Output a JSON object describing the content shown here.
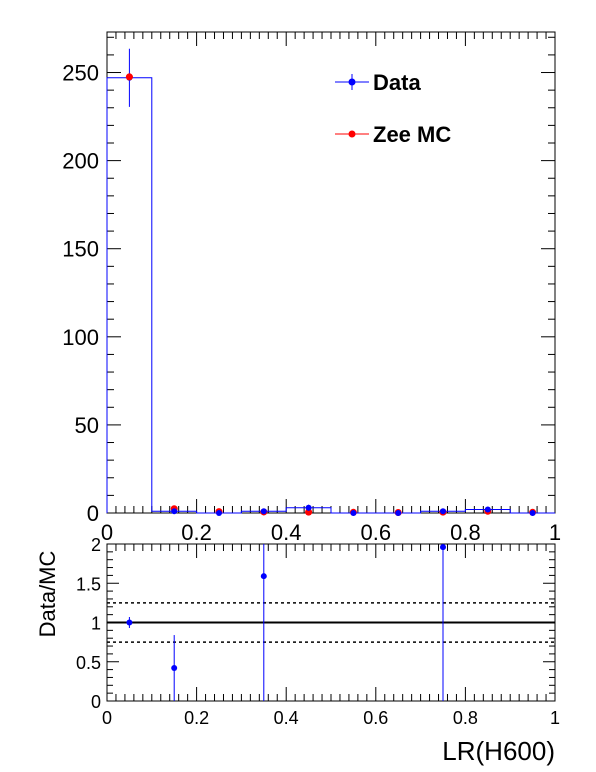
{
  "chart_data": [
    {
      "type": "histogram",
      "panel": "main",
      "xlim": [
        0,
        1
      ],
      "ylim": [
        0,
        273
      ],
      "x_ticks": [
        0,
        0.2,
        0.4,
        0.6,
        0.8,
        1
      ],
      "x_tick_labels": [
        "0",
        "0.2",
        "0.4",
        "0.6",
        "0.8",
        "1"
      ],
      "y_ticks": [
        0,
        50,
        100,
        150,
        200,
        250
      ],
      "y_tick_labels": [
        "0",
        "50",
        "100",
        "150",
        "200",
        "250"
      ],
      "bin_edges": [
        0,
        0.1,
        0.2,
        0.3,
        0.4,
        0.5,
        0.6,
        0.7,
        0.8,
        0.9,
        1.0
      ],
      "bin_centers": [
        0.05,
        0.15,
        0.25,
        0.35,
        0.45,
        0.55,
        0.65,
        0.75,
        0.85,
        0.95
      ],
      "legend_position": "top-right",
      "series": [
        {
          "name": "Data",
          "color": "#0000ff",
          "style": "step histogram with points and error bars",
          "values": [
            247,
            1,
            0,
            1,
            3,
            0,
            0,
            1,
            2,
            0
          ],
          "errors": [
            16.5,
            1,
            0,
            1,
            1.7,
            0,
            0,
            1,
            1.4,
            0
          ]
        },
        {
          "name": "Zee MC",
          "color": "#ff0000",
          "style": "points",
          "values": [
            247.5,
            2.4,
            0.8,
            0.6,
            0.5,
            0.4,
            0.3,
            0.5,
            1.0,
            0.4
          ]
        }
      ]
    },
    {
      "type": "scatter",
      "panel": "ratio",
      "ylabel": "Data/MC",
      "xlabel": "LR(H600)",
      "xlim": [
        0,
        1
      ],
      "ylim": [
        0,
        2
      ],
      "x_ticks": [
        0,
        0.2,
        0.4,
        0.6,
        0.8,
        1
      ],
      "x_tick_labels": [
        "0",
        "0.2",
        "0.4",
        "0.6",
        "0.8",
        "1"
      ],
      "y_ticks": [
        0,
        0.5,
        1,
        1.5,
        2
      ],
      "y_tick_labels": [
        "0",
        "0.5",
        "1",
        "1.5",
        "2"
      ],
      "reference_lines": [
        {
          "y": 1.0,
          "style": "solid"
        },
        {
          "y": 1.25,
          "style": "dotted"
        },
        {
          "y": 0.75,
          "style": "dotted"
        }
      ],
      "series": [
        {
          "color": "#0000ff",
          "x": [
            0.05,
            0.15,
            0.35,
            0.75
          ],
          "values": [
            1.0,
            0.42,
            1.59,
            1.96
          ],
          "err_low": [
            0.07,
            0.42,
            1.59,
            1.96
          ],
          "err_high": [
            0.07,
            0.42,
            1.7,
            2.0
          ]
        }
      ]
    }
  ]
}
